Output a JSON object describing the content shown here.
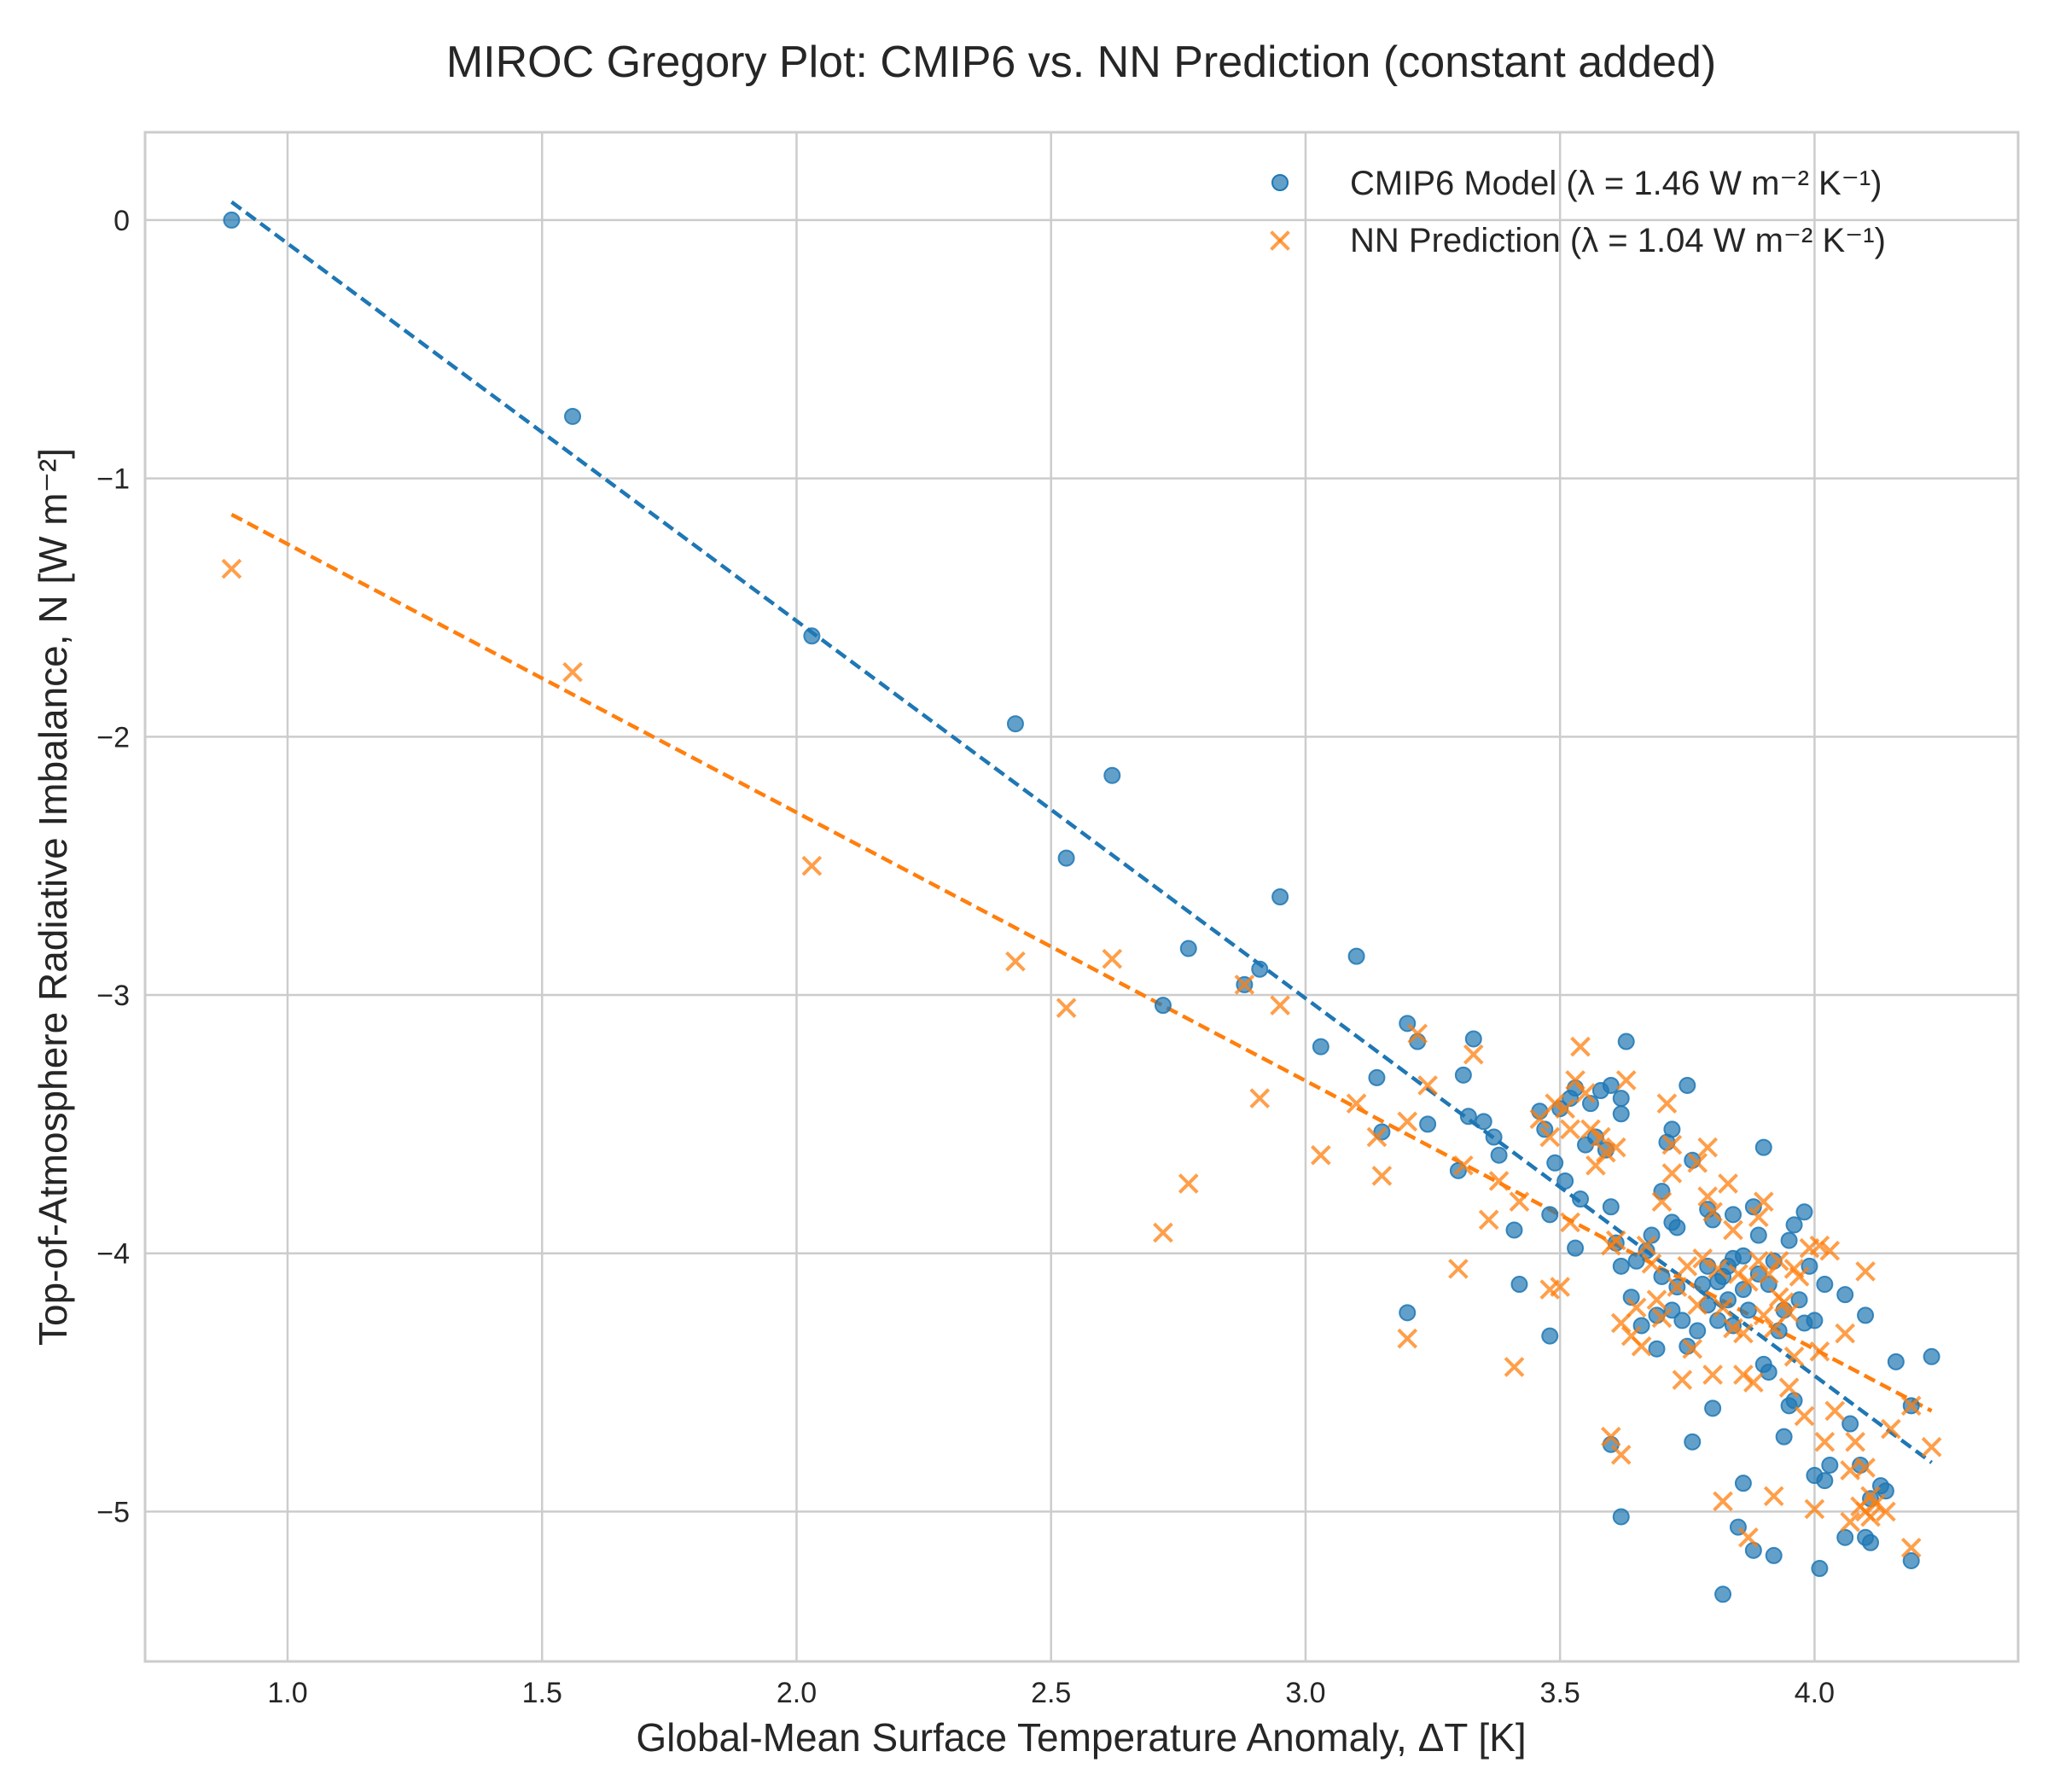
{
  "chart_data": {
    "type": "scatter",
    "title": "MIROC Gregory Plot: CMIP6 vs. NN Prediction (constant added)",
    "xlabel": "Global-Mean Surface Temperature Anomaly, ΔT [K]",
    "ylabel": "Top-of-Atmosphere Radiative Imbalance, N [W m⁻²]",
    "xlim": [
      0.72,
      4.4
    ],
    "ylim": [
      -5.58,
      0.34
    ],
    "xticks": [
      1.0,
      1.5,
      2.0,
      2.5,
      3.0,
      3.5,
      4.0
    ],
    "xtick_labels": [
      "1.0",
      "1.5",
      "2.0",
      "2.5",
      "3.0",
      "3.5",
      "4.0"
    ],
    "yticks": [
      0,
      -1,
      -2,
      -3,
      -4,
      -5
    ],
    "ytick_labels": [
      "0",
      "−1",
      "−2",
      "−3",
      "−4",
      "−5"
    ],
    "grid": true,
    "legend_position": "top-right",
    "series": [
      {
        "name": "CMIP6 Model (λ = 1.46 W m⁻² K⁻¹)",
        "marker": "circle",
        "color": "#1f77b4",
        "fit_line": {
          "x": [
            0.89,
            4.23
          ],
          "y": [
            0.07,
            -4.81
          ]
        },
        "points": [
          [
            0.89,
            0.0
          ],
          [
            1.56,
            -0.76
          ],
          [
            2.03,
            -1.61
          ],
          [
            2.43,
            -1.95
          ],
          [
            2.53,
            -2.47
          ],
          [
            2.62,
            -2.15
          ],
          [
            2.72,
            -3.04
          ],
          [
            2.77,
            -2.82
          ],
          [
            2.88,
            -2.96
          ],
          [
            2.91,
            -2.9
          ],
          [
            2.95,
            -2.62
          ],
          [
            3.03,
            -3.2
          ],
          [
            3.1,
            -2.85
          ],
          [
            3.14,
            -3.32
          ],
          [
            3.15,
            -3.53
          ],
          [
            3.2,
            -3.11
          ],
          [
            3.2,
            -4.23
          ],
          [
            3.22,
            -3.18
          ],
          [
            3.24,
            -3.5
          ],
          [
            3.3,
            -3.68
          ],
          [
            3.31,
            -3.31
          ],
          [
            3.32,
            -3.47
          ],
          [
            3.33,
            -3.17
          ],
          [
            3.35,
            -3.49
          ],
          [
            3.37,
            -3.55
          ],
          [
            3.38,
            -3.62
          ],
          [
            3.41,
            -3.91
          ],
          [
            3.42,
            -4.12
          ],
          [
            3.46,
            -3.45
          ],
          [
            3.47,
            -3.52
          ],
          [
            3.48,
            -3.85
          ],
          [
            3.48,
            -4.32
          ],
          [
            3.49,
            -3.65
          ],
          [
            3.5,
            -3.44
          ],
          [
            3.51,
            -3.72
          ],
          [
            3.52,
            -3.4
          ],
          [
            3.53,
            -3.36
          ],
          [
            3.53,
            -3.98
          ],
          [
            3.54,
            -3.79
          ],
          [
            3.55,
            -3.58
          ],
          [
            3.56,
            -3.42
          ],
          [
            3.57,
            -3.55
          ],
          [
            3.58,
            -3.37
          ],
          [
            3.59,
            -3.6
          ],
          [
            3.6,
            -3.35
          ],
          [
            3.6,
            -3.82
          ],
          [
            3.6,
            -4.74
          ],
          [
            3.61,
            -3.96
          ],
          [
            3.62,
            -3.4
          ],
          [
            3.62,
            -3.46
          ],
          [
            3.62,
            -4.05
          ],
          [
            3.62,
            -5.02
          ],
          [
            3.63,
            -3.18
          ],
          [
            3.64,
            -4.17
          ],
          [
            3.65,
            -4.03
          ],
          [
            3.66,
            -4.28
          ],
          [
            3.67,
            -3.99
          ],
          [
            3.68,
            -3.93
          ],
          [
            3.69,
            -4.24
          ],
          [
            3.69,
            -4.37
          ],
          [
            3.7,
            -3.76
          ],
          [
            3.7,
            -4.09
          ],
          [
            3.71,
            -3.57
          ],
          [
            3.72,
            -3.52
          ],
          [
            3.72,
            -3.88
          ],
          [
            3.72,
            -4.22
          ],
          [
            3.73,
            -4.13
          ],
          [
            3.73,
            -3.9
          ],
          [
            3.74,
            -4.26
          ],
          [
            3.75,
            -3.35
          ],
          [
            3.75,
            -4.36
          ],
          [
            3.76,
            -4.73
          ],
          [
            3.76,
            -3.64
          ],
          [
            3.77,
            -4.3
          ],
          [
            3.78,
            -4.12
          ],
          [
            3.79,
            -3.83
          ],
          [
            3.79,
            -4.05
          ],
          [
            3.79,
            -4.2
          ],
          [
            3.8,
            -3.87
          ],
          [
            3.8,
            -4.6
          ],
          [
            3.81,
            -4.11
          ],
          [
            3.81,
            -4.26
          ],
          [
            3.82,
            -4.09
          ],
          [
            3.82,
            -5.32
          ],
          [
            3.83,
            -4.05
          ],
          [
            3.83,
            -4.18
          ],
          [
            3.84,
            -3.85
          ],
          [
            3.84,
            -4.02
          ],
          [
            3.84,
            -4.28
          ],
          [
            3.85,
            -5.06
          ],
          [
            3.86,
            -4.89
          ],
          [
            3.86,
            -4.01
          ],
          [
            3.86,
            -4.14
          ],
          [
            3.87,
            -4.22
          ],
          [
            3.88,
            -3.82
          ],
          [
            3.88,
            -5.15
          ],
          [
            3.89,
            -4.08
          ],
          [
            3.89,
            -3.93
          ],
          [
            3.9,
            -4.43
          ],
          [
            3.9,
            -3.59
          ],
          [
            3.91,
            -4.12
          ],
          [
            3.91,
            -4.46
          ],
          [
            3.92,
            -4.03
          ],
          [
            3.92,
            -5.17
          ],
          [
            3.93,
            -4.3
          ],
          [
            3.94,
            -4.22
          ],
          [
            3.94,
            -4.71
          ],
          [
            3.95,
            -3.95
          ],
          [
            3.95,
            -4.59
          ],
          [
            3.96,
            -3.89
          ],
          [
            3.96,
            -4.57
          ],
          [
            3.97,
            -4.18
          ],
          [
            3.98,
            -4.27
          ],
          [
            3.98,
            -3.84
          ],
          [
            3.99,
            -4.05
          ],
          [
            4.0,
            -4.26
          ],
          [
            4.0,
            -4.86
          ],
          [
            4.01,
            -5.22
          ],
          [
            4.02,
            -4.12
          ],
          [
            4.02,
            -4.88
          ],
          [
            4.03,
            -4.82
          ],
          [
            4.06,
            -4.16
          ],
          [
            4.06,
            -5.1
          ],
          [
            4.07,
            -4.66
          ],
          [
            4.09,
            -4.82
          ],
          [
            4.1,
            -4.24
          ],
          [
            4.1,
            -5.1
          ],
          [
            4.11,
            -4.95
          ],
          [
            4.11,
            -5.12
          ],
          [
            4.13,
            -4.9
          ],
          [
            4.14,
            -4.92
          ],
          [
            4.16,
            -4.42
          ],
          [
            4.19,
            -5.19
          ],
          [
            4.19,
            -4.59
          ],
          [
            4.23,
            -4.4
          ]
        ]
      },
      {
        "name": "NN Prediction (λ = 1.04 W m⁻² K⁻¹)",
        "marker": "x",
        "color": "#ff7f0e",
        "fit_line": {
          "x": [
            0.89,
            4.23
          ],
          "y": [
            -1.14,
            -4.61
          ]
        },
        "points": [
          [
            0.89,
            -1.35
          ],
          [
            1.56,
            -1.75
          ],
          [
            2.03,
            -2.5
          ],
          [
            2.43,
            -2.87
          ],
          [
            2.53,
            -3.05
          ],
          [
            2.62,
            -2.86
          ],
          [
            2.72,
            -3.92
          ],
          [
            2.77,
            -3.73
          ],
          [
            2.88,
            -2.96
          ],
          [
            2.91,
            -3.4
          ],
          [
            2.95,
            -3.04
          ],
          [
            3.03,
            -3.62
          ],
          [
            3.1,
            -3.42
          ],
          [
            3.14,
            -3.55
          ],
          [
            3.15,
            -3.7
          ],
          [
            3.2,
            -3.49
          ],
          [
            3.2,
            -4.33
          ],
          [
            3.22,
            -3.15
          ],
          [
            3.24,
            -3.35
          ],
          [
            3.3,
            -4.06
          ],
          [
            3.31,
            -3.66
          ],
          [
            3.33,
            -3.23
          ],
          [
            3.36,
            -3.87
          ],
          [
            3.38,
            -3.72
          ],
          [
            3.41,
            -4.44
          ],
          [
            3.42,
            -3.8
          ],
          [
            3.46,
            -3.48
          ],
          [
            3.48,
            -4.14
          ],
          [
            3.48,
            -3.55
          ],
          [
            3.49,
            -3.42
          ],
          [
            3.5,
            -4.13
          ],
          [
            3.51,
            -3.44
          ],
          [
            3.52,
            -3.52
          ],
          [
            3.52,
            -3.88
          ],
          [
            3.53,
            -3.33
          ],
          [
            3.54,
            -3.2
          ],
          [
            3.55,
            -3.38
          ],
          [
            3.56,
            -3.52
          ],
          [
            3.57,
            -3.66
          ],
          [
            3.58,
            -3.55
          ],
          [
            3.59,
            -3.61
          ],
          [
            3.6,
            -3.97
          ],
          [
            3.6,
            -4.71
          ],
          [
            3.61,
            -3.59
          ],
          [
            3.61,
            -3.95
          ],
          [
            3.62,
            -4.27
          ],
          [
            3.62,
            -4.78
          ],
          [
            3.63,
            -3.33
          ],
          [
            3.64,
            -4.32
          ],
          [
            3.65,
            -4.21
          ],
          [
            3.66,
            -4.36
          ],
          [
            3.67,
            -3.97
          ],
          [
            3.68,
            -4.04
          ],
          [
            3.69,
            -4.18
          ],
          [
            3.7,
            -3.8
          ],
          [
            3.7,
            -4.25
          ],
          [
            3.71,
            -3.42
          ],
          [
            3.72,
            -3.58
          ],
          [
            3.72,
            -3.69
          ],
          [
            3.73,
            -4.13
          ],
          [
            3.74,
            -4.49
          ],
          [
            3.75,
            -4.05
          ],
          [
            3.76,
            -4.37
          ],
          [
            3.77,
            -4.2
          ],
          [
            3.77,
            -3.65
          ],
          [
            3.78,
            -4.02
          ],
          [
            3.79,
            -3.59
          ],
          [
            3.79,
            -3.78
          ],
          [
            3.8,
            -4.47
          ],
          [
            3.8,
            -3.84
          ],
          [
            3.81,
            -4.06
          ],
          [
            3.82,
            -4.96
          ],
          [
            3.82,
            -4.21
          ],
          [
            3.83,
            -3.73
          ],
          [
            3.84,
            -4.29
          ],
          [
            3.84,
            -3.91
          ],
          [
            3.85,
            -4.08
          ],
          [
            3.86,
            -4.31
          ],
          [
            3.86,
            -4.47
          ],
          [
            3.87,
            -5.1
          ],
          [
            3.87,
            -4.11
          ],
          [
            3.88,
            -4.5
          ],
          [
            3.89,
            -4.03
          ],
          [
            3.89,
            -3.86
          ],
          [
            3.9,
            -4.24
          ],
          [
            3.9,
            -3.8
          ],
          [
            3.91,
            -4.08
          ],
          [
            3.92,
            -4.94
          ],
          [
            3.92,
            -4.29
          ],
          [
            3.93,
            -4.17
          ],
          [
            3.93,
            -4.03
          ],
          [
            3.94,
            -4.19
          ],
          [
            3.95,
            -4.52
          ],
          [
            3.95,
            -4.23
          ],
          [
            3.96,
            -4.06
          ],
          [
            3.96,
            -4.4
          ],
          [
            3.97,
            -4.09
          ],
          [
            3.98,
            -4.63
          ],
          [
            3.99,
            -3.98
          ],
          [
            4.0,
            -4.99
          ],
          [
            4.01,
            -3.97
          ],
          [
            4.01,
            -4.38
          ],
          [
            4.02,
            -4.73
          ],
          [
            4.03,
            -3.99
          ],
          [
            4.04,
            -4.61
          ],
          [
            4.06,
            -4.31
          ],
          [
            4.07,
            -4.84
          ],
          [
            4.07,
            -5.04
          ],
          [
            4.08,
            -4.73
          ],
          [
            4.09,
            -4.98
          ],
          [
            4.1,
            -4.07
          ],
          [
            4.1,
            -4.83
          ],
          [
            4.1,
            -5.0
          ],
          [
            4.11,
            -4.94
          ],
          [
            4.11,
            -5.02
          ],
          [
            4.12,
            -4.97
          ],
          [
            4.14,
            -5.0
          ],
          [
            4.15,
            -4.68
          ],
          [
            4.19,
            -4.59
          ],
          [
            4.19,
            -5.14
          ],
          [
            4.23,
            -4.75
          ]
        ]
      }
    ]
  }
}
